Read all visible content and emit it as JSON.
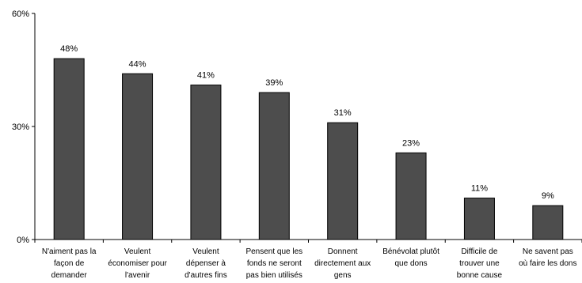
{
  "chart_data": {
    "type": "bar",
    "title": "",
    "xlabel": "",
    "ylabel": "",
    "ylim": [
      0,
      60
    ],
    "yticks": [
      {
        "value": 0,
        "label": "0%"
      },
      {
        "value": 30,
        "label": "30%"
      },
      {
        "value": 60,
        "label": "60%"
      }
    ],
    "grid": false,
    "legend": "none",
    "bar_color": "#4d4d4d",
    "categories": [
      [
        "N'aiment pas la",
        "façon de",
        "demander"
      ],
      [
        "Veulent",
        "économiser pour",
        "l'avenir"
      ],
      [
        "Veulent",
        "dépenser à",
        "d'autres fins"
      ],
      [
        "Pensent que les",
        "fonds ne seront",
        "pas bien utilisés"
      ],
      [
        "Donnent",
        "directement aux",
        "gens"
      ],
      [
        "Bénévolat plutôt",
        "que dons"
      ],
      [
        "Difficile de",
        "trouver une",
        "bonne cause"
      ],
      [
        "Ne savent pas",
        "où faire les dons"
      ]
    ],
    "values": [
      48,
      44,
      41,
      39,
      31,
      23,
      11,
      9
    ],
    "value_labels": [
      "48%",
      "44%",
      "41%",
      "39%",
      "31%",
      "23%",
      "11%",
      "9%"
    ]
  }
}
